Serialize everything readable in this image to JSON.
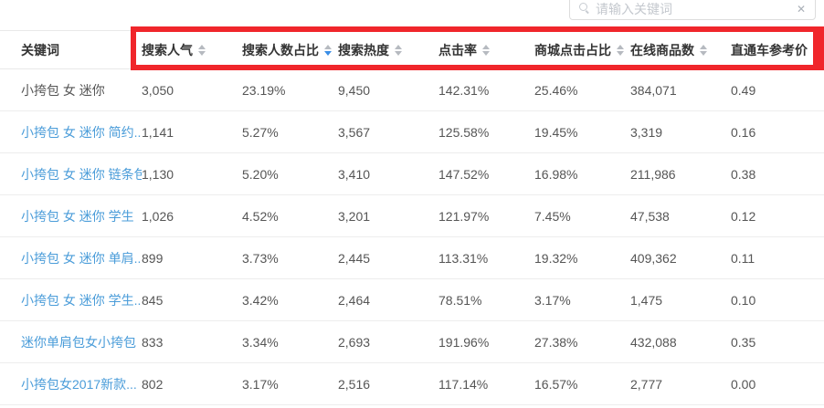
{
  "search": {
    "placeholder": "请输入关键词",
    "clear_glyph": "✕"
  },
  "table": {
    "columns": [
      {
        "key": "keyword",
        "label": "关键词",
        "sortable": false,
        "sort": "none"
      },
      {
        "key": "search-popularity",
        "label": "搜索人气",
        "sortable": true,
        "sort": "none"
      },
      {
        "key": "searcher-ratio",
        "label": "搜索人数占比",
        "sortable": true,
        "sort": "desc"
      },
      {
        "key": "search-heat",
        "label": "搜索热度",
        "sortable": true,
        "sort": "none"
      },
      {
        "key": "click-rate",
        "label": "点击率",
        "sortable": true,
        "sort": "none"
      },
      {
        "key": "mall-click-ratio",
        "label": "商城点击占比",
        "sortable": true,
        "sort": "none"
      },
      {
        "key": "online-products",
        "label": "在线商品数",
        "sortable": true,
        "sort": "none"
      },
      {
        "key": "ztc-ref-price",
        "label": "直通车参考价",
        "sortable": true,
        "sort": "none"
      }
    ],
    "rows": [
      {
        "keyword": "小挎包 女 迷你",
        "link": false,
        "values": [
          "3,050",
          "23.19%",
          "9,450",
          "142.31%",
          "25.46%",
          "384,071",
          "0.49"
        ]
      },
      {
        "keyword": "小挎包 女 迷你 简约...",
        "link": true,
        "values": [
          "1,141",
          "5.27%",
          "3,567",
          "125.58%",
          "19.45%",
          "3,319",
          "0.16"
        ]
      },
      {
        "keyword": "小挎包 女 迷你 链条包",
        "link": true,
        "values": [
          "1,130",
          "5.20%",
          "3,410",
          "147.52%",
          "16.98%",
          "211,986",
          "0.38"
        ]
      },
      {
        "keyword": "小挎包 女 迷你 学生",
        "link": true,
        "values": [
          "1,026",
          "4.52%",
          "3,201",
          "121.97%",
          "7.45%",
          "47,538",
          "0.12"
        ]
      },
      {
        "keyword": "小挎包 女 迷你 单肩...",
        "link": true,
        "values": [
          "899",
          "3.73%",
          "2,445",
          "113.31%",
          "19.32%",
          "409,362",
          "0.11"
        ]
      },
      {
        "keyword": "小挎包 女 迷你 学生...",
        "link": true,
        "values": [
          "845",
          "3.42%",
          "2,464",
          "78.51%",
          "3.17%",
          "1,475",
          "0.10"
        ]
      },
      {
        "keyword": "迷你单肩包女小挎包",
        "link": true,
        "values": [
          "833",
          "3.34%",
          "2,693",
          "191.96%",
          "27.38%",
          "432,088",
          "0.35"
        ]
      },
      {
        "keyword": "小挎包女2017新款...",
        "link": true,
        "values": [
          "802",
          "3.17%",
          "2,516",
          "117.14%",
          "16.57%",
          "2,777",
          "0.00"
        ]
      }
    ]
  },
  "colors": {
    "highlight_red": "#f0262b",
    "link_blue": "#4a9cd9",
    "sort_active_blue": "#3a8ee6"
  }
}
